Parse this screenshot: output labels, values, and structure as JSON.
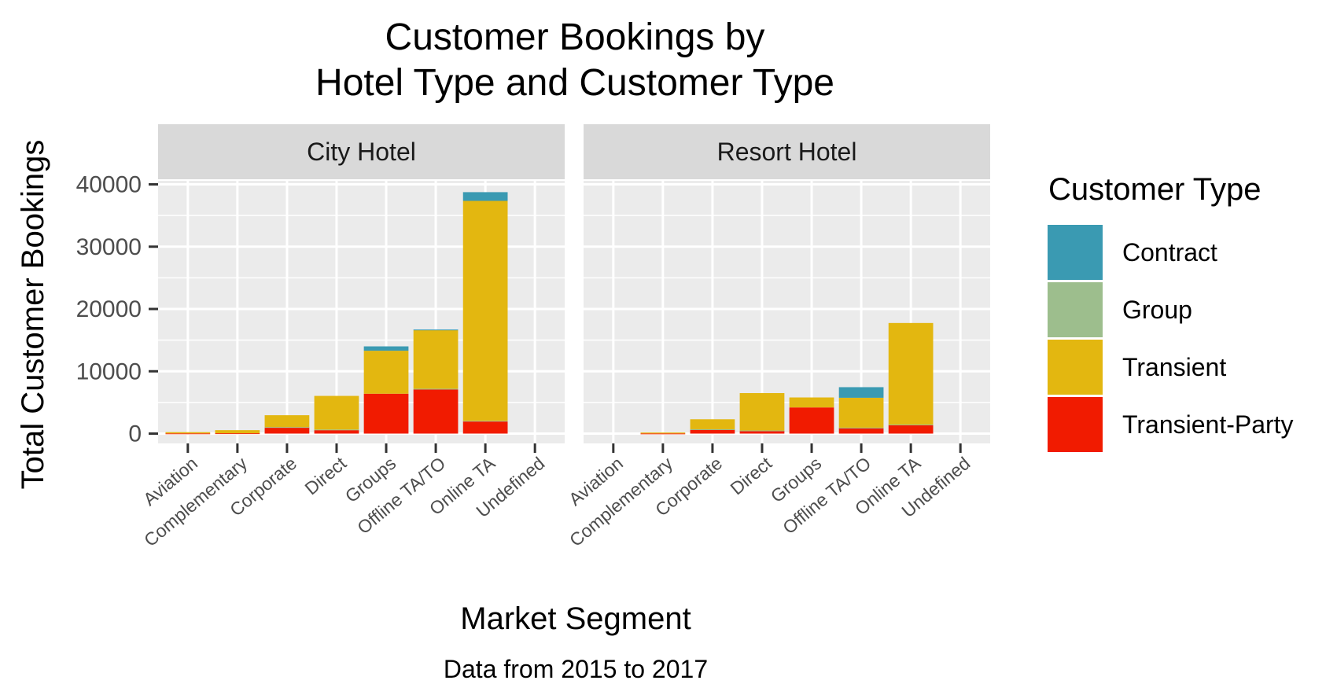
{
  "chart_data": {
    "type": "bar",
    "stacked": true,
    "title_lines": [
      "Customer Bookings by",
      "Hotel Type and Customer Type"
    ],
    "xlabel": "Market Segment",
    "ylabel": "Total Customer Bookings",
    "caption": "Data from 2015 to 2017",
    "ylim": [
      0,
      48000
    ],
    "yticks": [
      0,
      10000,
      20000,
      30000,
      40000
    ],
    "categories": [
      "Aviation",
      "Complementary",
      "Corporate",
      "Direct",
      "Groups",
      "Offline TA/TO",
      "Online TA",
      "Undefined"
    ],
    "legend": {
      "title": "Customer Type",
      "placement": "right",
      "items": [
        {
          "name": "Contract",
          "color": "#3A9AB2"
        },
        {
          "name": "Group",
          "color": "#9DBE8D"
        },
        {
          "name": "Transient",
          "color": "#E3B710"
        },
        {
          "name": "Transient-Party",
          "color": "#F11B00"
        }
      ]
    },
    "stack_order": [
      "Transient-Party",
      "Group",
      "Transient",
      "Contract"
    ],
    "panels": [
      {
        "name": "City Hotel",
        "series": {
          "Contract": [
            0,
            0,
            0,
            0,
            700,
            100,
            1400,
            0
          ],
          "Group": [
            0,
            0,
            50,
            50,
            0,
            100,
            50,
            0
          ],
          "Transient": [
            200,
            500,
            1900,
            5400,
            6900,
            9400,
            35300,
            0
          ],
          "Transient-Party": [
            30,
            50,
            1000,
            600,
            6400,
            7100,
            2000,
            0
          ]
        }
      },
      {
        "name": "Resort Hotel",
        "series": {
          "Contract": [
            0,
            0,
            0,
            0,
            0,
            1700,
            0,
            0
          ],
          "Group": [
            0,
            0,
            50,
            50,
            0,
            50,
            50,
            0
          ],
          "Transient": [
            0,
            150,
            1600,
            6000,
            1600,
            4800,
            16300,
            0
          ],
          "Transient-Party": [
            0,
            20,
            650,
            450,
            4200,
            900,
            1400,
            0
          ]
        }
      }
    ]
  }
}
